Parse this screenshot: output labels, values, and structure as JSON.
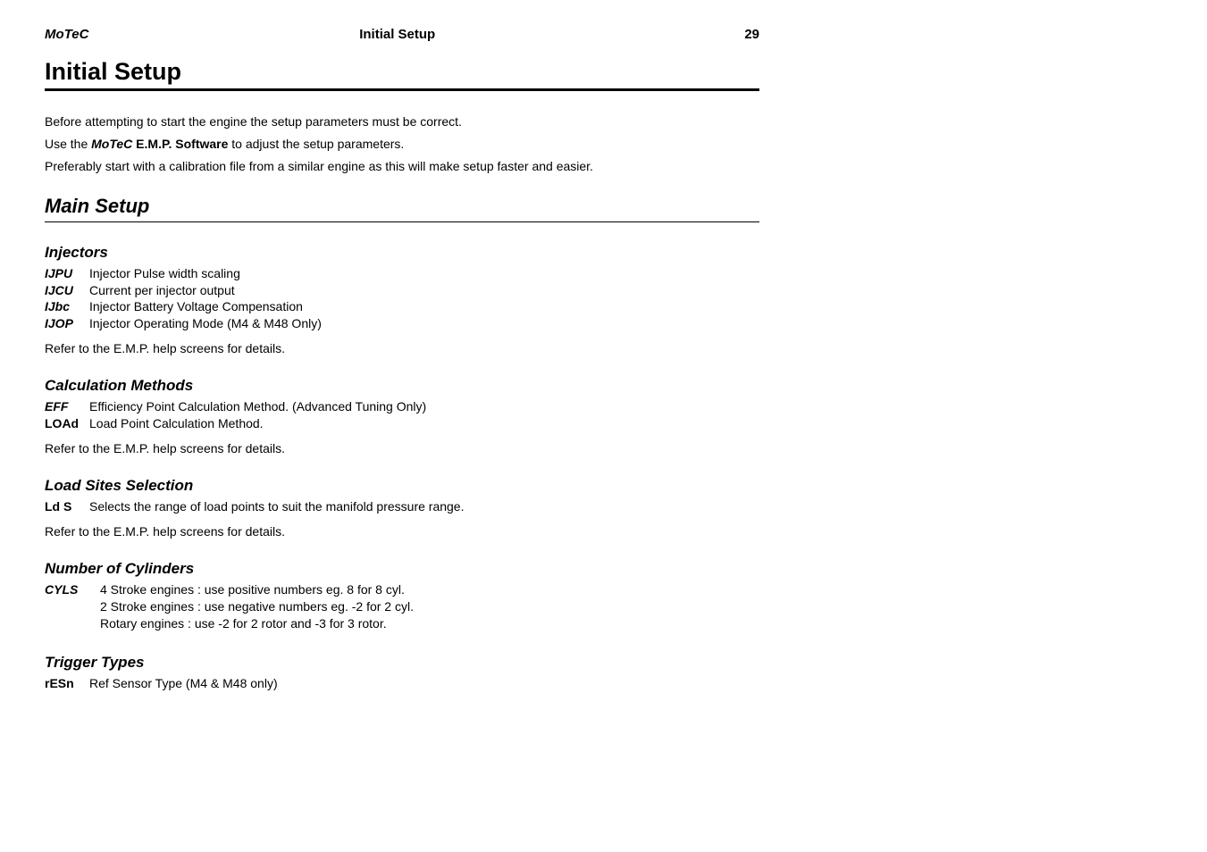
{
  "header": {
    "brand": "MoTeC",
    "section_title": "Initial Setup",
    "page_number": "29"
  },
  "page_title": "Initial Setup",
  "intro": {
    "p1": "Before attempting to start the engine the setup parameters must be correct.",
    "p2_pre": "Use the ",
    "p2_brand": "MoTeC",
    "p2_software": " E.M.P. Software",
    "p2_post": " to adjust the setup parameters.",
    "p3": "Preferably start with a calibration file from a similar engine as this will make setup faster and easier."
  },
  "main_setup_heading": "Main Setup",
  "injectors": {
    "heading": "Injectors",
    "items": [
      {
        "term": "IJPU",
        "desc": "Injector Pulse width scaling",
        "italic": true
      },
      {
        "term": "IJCU",
        "desc": "Current per injector output",
        "italic": true
      },
      {
        "term": "IJbc",
        "desc": "Injector Battery Voltage Compensation",
        "italic": true
      },
      {
        "term": "IJOP",
        "desc": "Injector Operating Mode (M4 & M48 Only)",
        "italic": true
      }
    ],
    "refer": "Refer to the E.M.P. help screens for details."
  },
  "calc_methods": {
    "heading": "Calculation Methods",
    "items": [
      {
        "term": "EFF",
        "desc": "Efficiency Point Calculation Method. (Advanced Tuning Only)",
        "italic": true
      },
      {
        "term": "LOAd",
        "desc": "Load Point Calculation Method.",
        "italic": false
      }
    ],
    "refer": "Refer to the E.M.P. help screens for details."
  },
  "load_sites": {
    "heading": "Load Sites Selection",
    "items": [
      {
        "term": "Ld S",
        "desc": "Selects the range of load points to suit the manifold pressure range.",
        "italic": false
      }
    ],
    "refer": "Refer to the E.M.P. help screens for details."
  },
  "num_cylinders": {
    "heading": "Number of Cylinders",
    "term": "CYLS",
    "line1": "4 Stroke engines : use positive numbers eg. 8 for 8 cyl.",
    "line2": "2 Stroke engines : use negative numbers eg. -2 for 2 cyl.",
    "line3": "Rotary engines : use -2 for 2 rotor and -3 for 3 rotor."
  },
  "trigger_types": {
    "heading": "Trigger Types",
    "items": [
      {
        "term": "rESn",
        "desc": "Ref Sensor Type (M4 & M48 only)",
        "italic": false
      }
    ]
  }
}
